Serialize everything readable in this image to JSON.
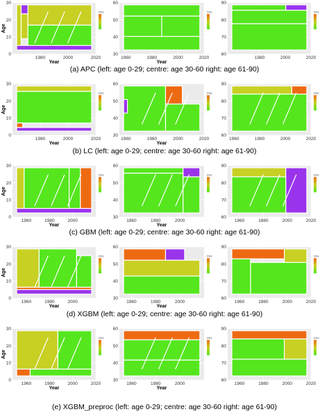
{
  "colors": {
    "panel_background": "#ebebeb",
    "gridline": "#ffffff",
    "cell_border": "#ffffff",
    "low": "#55e61e",
    "mid": "#c8d023",
    "high": "#ee6a12",
    "outlier": "#9a34ec"
  },
  "figure": {
    "row_captions": [
      "(a) APC (left: age 0-29; centre: age 30-60 right: age 61-90)",
      "(b) LC (left: age 0-29; centre: age 30-60 right: age 61-90)",
      "(c) GBM (left: age 0-29; centre: age 30-60 right: age 61-90)",
      "(d) XGBM (left: age 0-29; centre: age 30-60 right: age 61-90)",
      "(e) XGBM_preproc (left: age 0-29; centre: age 30-60 right: age 61-90)"
    ]
  },
  "chart_data": [
    {
      "type": "heatmap",
      "model": "APC",
      "panel": "left",
      "xlabel": "Year",
      "ylabel": "Age",
      "xlim": [
        1960,
        2020
      ],
      "ylim": [
        0,
        30
      ],
      "xticks": [
        "1980",
        "2000",
        "2020"
      ],
      "yticks": [
        "0",
        "10",
        "20",
        "30"
      ],
      "legend_title": "Disc",
      "legend_position": "right"
    },
    {
      "type": "heatmap",
      "model": "APC",
      "panel": "centre",
      "xlabel": "Year",
      "ylabel": "",
      "xlim": [
        1955,
        2020
      ],
      "ylim": [
        30,
        60
      ],
      "xticks": [
        "1960",
        "1980",
        "2000",
        "2020"
      ],
      "yticks": [
        "30",
        "40",
        "50",
        "60"
      ],
      "legend_title": "Disc",
      "legend_position": "right"
    },
    {
      "type": "heatmap",
      "model": "APC",
      "panel": "right",
      "xlabel": "",
      "ylabel": "",
      "xlim": [
        1955,
        2020
      ],
      "ylim": [
        60,
        90
      ],
      "xticks": [
        "1980",
        "2000",
        "2020"
      ],
      "yticks": [
        "60",
        "70",
        "80",
        "90"
      ],
      "legend_title": "Disc",
      "legend_position": "right"
    },
    {
      "type": "heatmap",
      "model": "LC",
      "panel": "left",
      "xlabel": "Year",
      "ylabel": "Age",
      "xlim": [
        1960,
        2020
      ],
      "ylim": [
        0,
        30
      ],
      "xticks": [
        "1980",
        "2000",
        "2020"
      ],
      "yticks": [
        "0",
        "10",
        "20",
        "30"
      ],
      "legend_title": "Disc",
      "legend_position": "right"
    },
    {
      "type": "heatmap",
      "model": "LC",
      "panel": "centre",
      "xlabel": "Year",
      "ylabel": "",
      "xlim": [
        1955,
        2020
      ],
      "ylim": [
        30,
        60
      ],
      "xticks": [
        "1960",
        "1980",
        "2000",
        "2020"
      ],
      "yticks": [
        "30",
        "40",
        "50",
        "60"
      ],
      "legend_title": "Disc",
      "legend_position": "right"
    },
    {
      "type": "heatmap",
      "model": "LC",
      "panel": "right",
      "xlabel": "",
      "ylabel": "",
      "xlim": [
        1955,
        2020
      ],
      "ylim": [
        60,
        90
      ],
      "xticks": [
        "1960",
        "1980",
        "2000",
        "2020"
      ],
      "yticks": [
        "60",
        "70",
        "80",
        "90"
      ],
      "legend_title": "Disc",
      "legend_position": "right"
    },
    {
      "type": "heatmap",
      "model": "GBM",
      "panel": "left",
      "xlabel": "Year",
      "ylabel": "Age",
      "xlim": [
        1948,
        2020
      ],
      "ylim": [
        0,
        30
      ],
      "xticks": [
        "1960",
        "1980",
        "2000"
      ],
      "yticks": [
        "0",
        "10",
        "20",
        "30"
      ],
      "legend_title": "Disc",
      "legend_position": "right"
    },
    {
      "type": "heatmap",
      "model": "GBM",
      "panel": "centre",
      "xlabel": "Year",
      "ylabel": "",
      "xlim": [
        1950,
        2020
      ],
      "ylim": [
        30,
        60
      ],
      "xticks": [
        "1960",
        "1980",
        "2000"
      ],
      "yticks": [
        "30",
        "40",
        "50",
        "60"
      ],
      "legend_title": "Disc",
      "legend_position": "right"
    },
    {
      "type": "heatmap",
      "model": "GBM",
      "panel": "right",
      "xlabel": "",
      "ylabel": "",
      "xlim": [
        1950,
        2020
      ],
      "ylim": [
        60,
        90
      ],
      "xticks": [
        "1960",
        "1980",
        "2000",
        "2020"
      ],
      "yticks": [
        "60",
        "70",
        "80",
        "90"
      ],
      "legend_title": "Disc",
      "legend_position": "right"
    },
    {
      "type": "heatmap",
      "model": "XGBM",
      "panel": "left",
      "xlabel": "Year",
      "ylabel": "Age",
      "xlim": [
        1948,
        2020
      ],
      "ylim": [
        0,
        30
      ],
      "xticks": [
        "1960",
        "1980",
        "2000"
      ],
      "yticks": [
        "0",
        "10",
        "20",
        "30"
      ],
      "legend_title": "Disc",
      "legend_position": "right"
    },
    {
      "type": "heatmap",
      "model": "XGBM",
      "panel": "centre",
      "xlabel": "Year",
      "ylabel": "",
      "xlim": [
        1950,
        2020
      ],
      "ylim": [
        30,
        60
      ],
      "xticks": [
        "1960",
        "1980",
        "2000"
      ],
      "yticks": [
        "30",
        "40",
        "50",
        "60"
      ],
      "legend_title": "Disc",
      "legend_position": "right"
    },
    {
      "type": "heatmap",
      "model": "XGBM",
      "panel": "right",
      "xlabel": "",
      "ylabel": "",
      "xlim": [
        1950,
        2020
      ],
      "ylim": [
        60,
        90
      ],
      "xticks": [
        "1960",
        "1980",
        "2000",
        "2020"
      ],
      "yticks": [
        "60",
        "70",
        "80",
        "90"
      ],
      "legend_title": "Disc",
      "legend_position": "right"
    },
    {
      "type": "heatmap",
      "model": "XGBM_preproc",
      "panel": "left",
      "xlabel": "Year",
      "ylabel": "Age",
      "xlim": [
        1948,
        2020
      ],
      "ylim": [
        0,
        30
      ],
      "xticks": [
        "1960",
        "1980",
        "2000",
        "2020"
      ],
      "yticks": [
        "0",
        "10",
        "20",
        "30"
      ],
      "legend_title": "Disc",
      "legend_position": "right"
    },
    {
      "type": "heatmap",
      "model": "XGBM_preproc",
      "panel": "centre",
      "xlabel": "Year",
      "ylabel": "",
      "xlim": [
        1950,
        2020
      ],
      "ylim": [
        30,
        60
      ],
      "xticks": [
        "1960",
        "1980",
        "2000"
      ],
      "yticks": [
        "30",
        "40",
        "50",
        "60"
      ],
      "legend_title": "Disc",
      "legend_position": "right"
    },
    {
      "type": "heatmap",
      "model": "XGBM_preproc",
      "panel": "right",
      "xlabel": "",
      "ylabel": "",
      "xlim": [
        1950,
        2020
      ],
      "ylim": [
        60,
        90
      ],
      "xticks": [
        "1960",
        "1980",
        "2000",
        "2020"
      ],
      "yticks": [
        "60",
        "70",
        "80",
        "90"
      ],
      "legend_title": "Disc",
      "legend_position": "right"
    }
  ]
}
